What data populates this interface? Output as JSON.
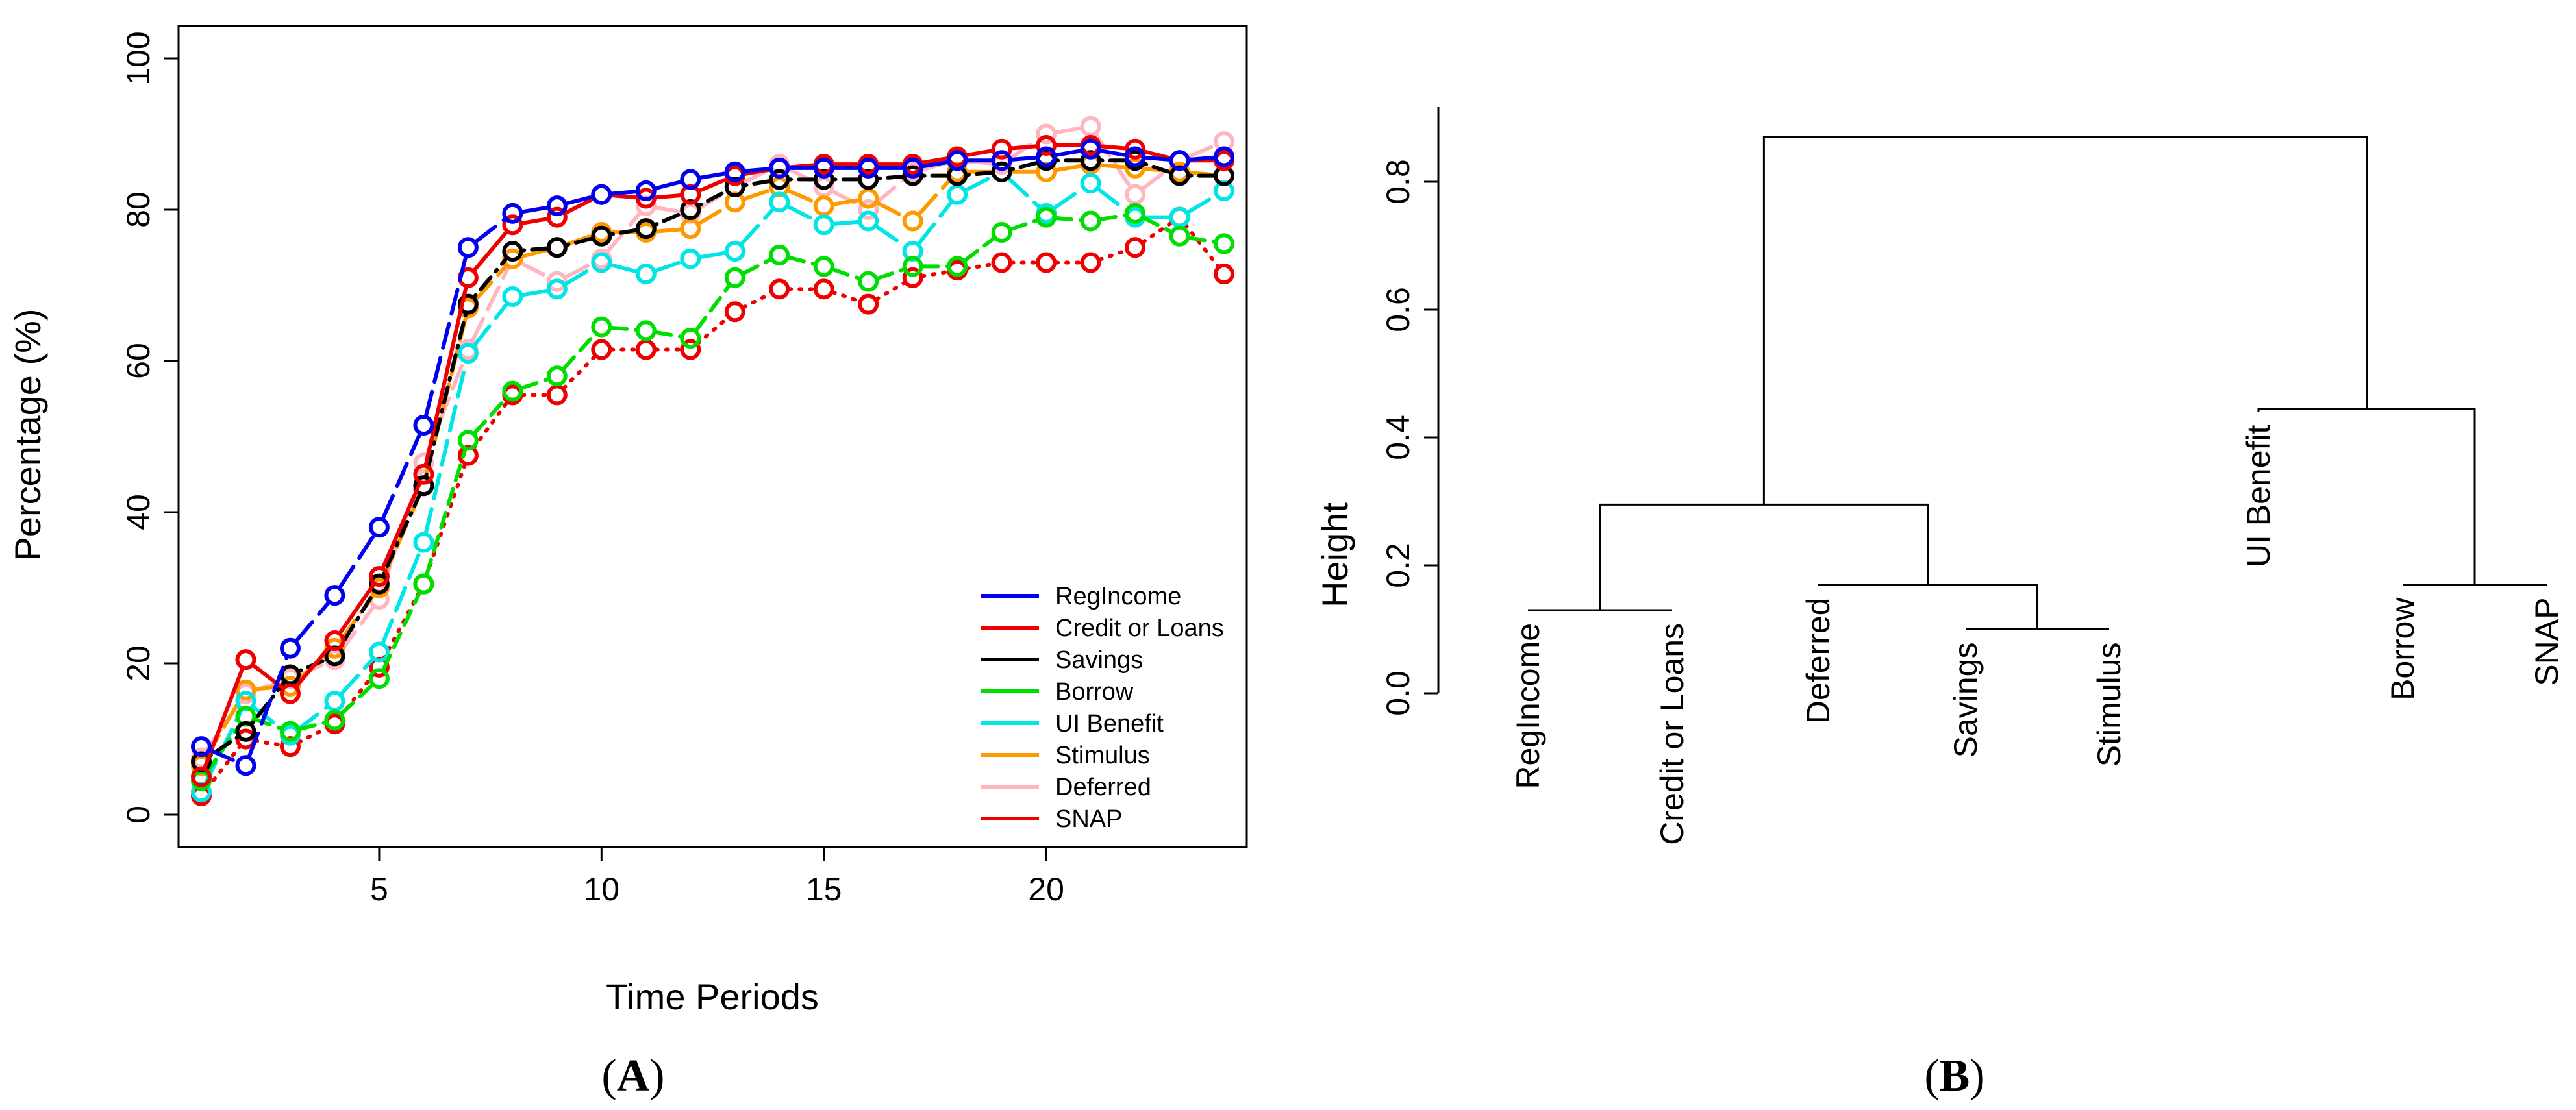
{
  "chart_data": [
    {
      "panel_label": "A",
      "type": "line",
      "xlabel": "Time Periods",
      "ylabel": "Percentage (%)",
      "xlim": [
        0,
        25
      ],
      "ylim": [
        -5,
        100
      ],
      "x_ticks": [
        5,
        10,
        15,
        20
      ],
      "y_ticks": [
        0,
        20,
        40,
        60,
        80,
        100
      ],
      "grid": false,
      "legend_position": "bottom-right",
      "x": [
        1,
        2,
        3,
        4,
        5,
        6,
        7,
        8,
        9,
        10,
        11,
        12,
        13,
        14,
        15,
        16,
        17,
        18,
        19,
        20,
        21,
        22,
        23,
        24
      ],
      "series": [
        {
          "name": "RegIncome",
          "color": "#0000ee",
          "dash": "long-dash",
          "values": [
            9,
            6.5,
            22,
            29,
            38,
            51.5,
            75,
            79.5,
            80.5,
            82,
            82.5,
            84,
            85,
            85.5,
            85.5,
            85.5,
            85.5,
            86.5,
            86.5,
            87,
            88,
            87,
            86.5,
            87
          ]
        },
        {
          "name": "Credit or Loans",
          "color": "#ee0000",
          "dash": "solid",
          "values": [
            5,
            20.5,
            16,
            23,
            31.5,
            45,
            71,
            78,
            79,
            82,
            81.5,
            82,
            84.5,
            85.5,
            86,
            86,
            86,
            87,
            88,
            88.5,
            88.5,
            88,
            86.5,
            86.5
          ]
        },
        {
          "name": "Savings",
          "color": "#000000",
          "dash": "dot-dash",
          "values": [
            7,
            11,
            18.5,
            21,
            30.5,
            43.5,
            67.5,
            74.5,
            75,
            76.5,
            77.5,
            80,
            83,
            84,
            84,
            84,
            84.5,
            84.5,
            85,
            86.5,
            86.5,
            86.5,
            84.5,
            84.5
          ]
        },
        {
          "name": "Borrow",
          "color": "#00dd00",
          "dash": "dashed",
          "values": [
            4.5,
            13,
            11,
            12.5,
            18,
            30.5,
            49.5,
            56,
            58,
            64.5,
            64,
            63,
            71,
            74,
            72.5,
            70.5,
            72.5,
            72.5,
            77,
            79,
            78.5,
            79.5,
            76.5,
            75.5
          ]
        },
        {
          "name": "UI Benefit",
          "color": "#00e5e5",
          "dash": "long-dash",
          "values": [
            3,
            15,
            10.5,
            15,
            21.5,
            36,
            61,
            68.5,
            69.5,
            73,
            71.5,
            73.5,
            74.5,
            81,
            78,
            78.5,
            74.5,
            82,
            85,
            79.5,
            83.5,
            79,
            79,
            82.5
          ]
        },
        {
          "name": "Stimulus",
          "color": "#ff9900",
          "dash": "long-dash",
          "values": [
            6.5,
            16.5,
            17,
            22,
            30,
            43.5,
            67,
            73.5,
            75,
            77,
            77,
            77.5,
            81,
            83,
            80.5,
            81.5,
            78.5,
            85,
            85,
            85,
            86,
            85.5,
            85,
            84.5
          ]
        },
        {
          "name": "Deferred",
          "color": "#ffb6c1",
          "dash": "long-dash",
          "values": [
            7.5,
            16,
            18,
            20.5,
            28.5,
            46.5,
            61.5,
            73.5,
            70.5,
            73.5,
            80.5,
            79.5,
            83,
            86,
            83,
            80,
            85,
            86.5,
            86,
            90,
            91,
            82,
            86.5,
            89
          ]
        },
        {
          "name": "SNAP",
          "color": "#ee0000",
          "dash": "dotted",
          "values": [
            2.5,
            10,
            9,
            12,
            19.5,
            30.5,
            47.5,
            55.5,
            55.5,
            61.5,
            61.5,
            61.5,
            66.5,
            69.5,
            69.5,
            67.5,
            71,
            72,
            73,
            73,
            73,
            75,
            79,
            71.5
          ]
        }
      ]
    },
    {
      "panel_label": "B",
      "type": "dendrogram",
      "ylabel": "Height",
      "ylim": [
        0,
        0.9
      ],
      "y_ticks": [
        0.0,
        0.2,
        0.4,
        0.6,
        0.8
      ],
      "y_tick_labels": [
        "0.0",
        "0.2",
        "0.4",
        "0.6",
        "0.8"
      ],
      "leaves": [
        "RegIncome",
        "Credit or Loans",
        "Deferred",
        "Savings",
        "Stimulus",
        "UI Benefit",
        "Borrow",
        "SNAP"
      ],
      "leaf_heights": [
        0.13,
        0.13,
        0.17,
        0.1,
        0.1,
        0.44,
        0.17,
        0.17
      ],
      "merges": [
        {
          "left": "leaf:0",
          "right": "leaf:1",
          "height": 0.13
        },
        {
          "left": "leaf:3",
          "right": "leaf:4",
          "height": 0.1
        },
        {
          "left": "leaf:2",
          "right": "node:1",
          "height": 0.17
        },
        {
          "left": "node:0",
          "right": "node:2",
          "height": 0.295
        },
        {
          "left": "leaf:6",
          "right": "leaf:7",
          "height": 0.17
        },
        {
          "left": "leaf:5",
          "right": "node:4",
          "height": 0.445
        },
        {
          "left": "node:3",
          "right": "node:5",
          "height": 0.87
        }
      ]
    }
  ]
}
